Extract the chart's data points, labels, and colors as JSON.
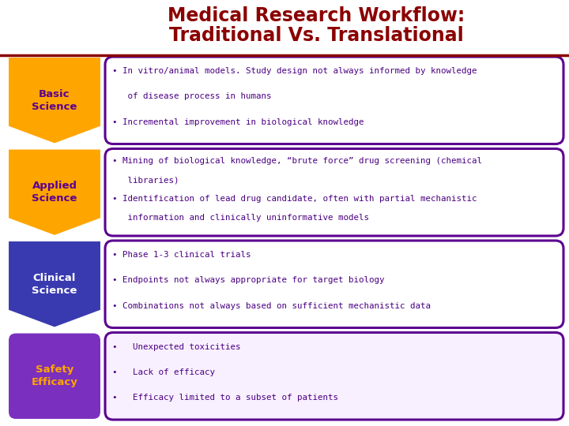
{
  "title_line1": "Medical Research Workflow:",
  "title_line2": "Traditional Vs. Translational",
  "title_color": "#8B0000",
  "title_fontsize": 18,
  "bg_color": "#FFFFFF",
  "divider_color": "#8B0000",
  "rows": [
    {
      "label": "Basic\nScience",
      "label_bg": "#FFA500",
      "label_text_color": "#5B0090",
      "arrow_color": "#FFA500",
      "box_border_color": "#5B0090",
      "box_bg": "#FFFFFF",
      "text_color": "#4B0082",
      "bullet_lines": [
        "• In vitro/animal models. Study design not always informed by knowledge",
        "   of disease process in humans",
        "• Incremental improvement in biological knowledge"
      ]
    },
    {
      "label": "Applied\nScience",
      "label_bg": "#FFA500",
      "label_text_color": "#5B0090",
      "arrow_color": "#FFA500",
      "box_border_color": "#5B0090",
      "box_bg": "#FFFFFF",
      "text_color": "#4B0082",
      "bullet_lines": [
        "• Mining of biological knowledge, “brute force” drug screening (chemical",
        "   libraries)",
        "• Identification of lead drug candidate, often with partial mechanistic",
        "   information and clinically uninformative models"
      ]
    },
    {
      "label": "Clinical\nScience",
      "label_bg": "#3A3AB0",
      "label_text_color": "#FFFFFF",
      "arrow_color": "#3A3AB0",
      "box_border_color": "#5B0090",
      "box_bg": "#FFFFFF",
      "text_color": "#4B0082",
      "bullet_lines": [
        "• Phase 1-3 clinical trials",
        "• Endpoints not always appropriate for target biology",
        "• Combinations not always based on sufficient mechanistic data"
      ]
    },
    {
      "label": "Safety\nEfficacy",
      "label_bg": "#7B2FBE",
      "label_text_color": "#FFA500",
      "arrow_color": "#7B2FBE",
      "box_border_color": "#5B0090",
      "box_bg": "#F8F0FF",
      "text_color": "#4B0082",
      "bullet_lines": [
        "•   Unexpected toxicities",
        "•   Lack of efficacy",
        "•   Efficacy limited to a subset of patients"
      ]
    }
  ]
}
